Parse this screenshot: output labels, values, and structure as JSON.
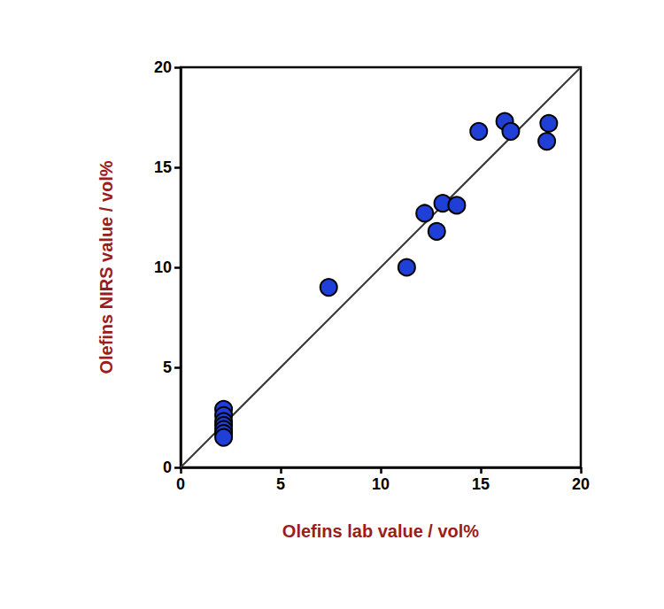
{
  "chart_data": {
    "type": "scatter",
    "xlabel": "Olefins lab value / vol%",
    "ylabel": "Olefins NIRS value / vol%",
    "xlim": [
      0,
      20
    ],
    "xticks": [
      0,
      5,
      10,
      15,
      20
    ],
    "ylim": [
      0,
      20
    ],
    "yticks": [
      0,
      5,
      10,
      15,
      20
    ],
    "grid": false,
    "series": [
      {
        "type": "scatter",
        "color": "#1f3fd6",
        "marker": "circle",
        "x": [
          2.15,
          2.15,
          2.15,
          2.15,
          2.15,
          2.15,
          2.15,
          7.4,
          11.3,
          12.2,
          12.8,
          13.1,
          13.8,
          14.9,
          16.2,
          16.5,
          18.3,
          18.4
        ],
        "values": [
          2.9,
          2.6,
          2.3,
          2.1,
          1.9,
          1.7,
          1.5,
          9.0,
          10.0,
          12.7,
          11.8,
          13.2,
          13.1,
          16.8,
          17.3,
          16.8,
          16.3,
          17.2
        ]
      },
      {
        "type": "line",
        "color": "#333333",
        "line_style": "solid",
        "x": [
          0,
          20
        ],
        "values": [
          0,
          20
        ]
      }
    ]
  }
}
